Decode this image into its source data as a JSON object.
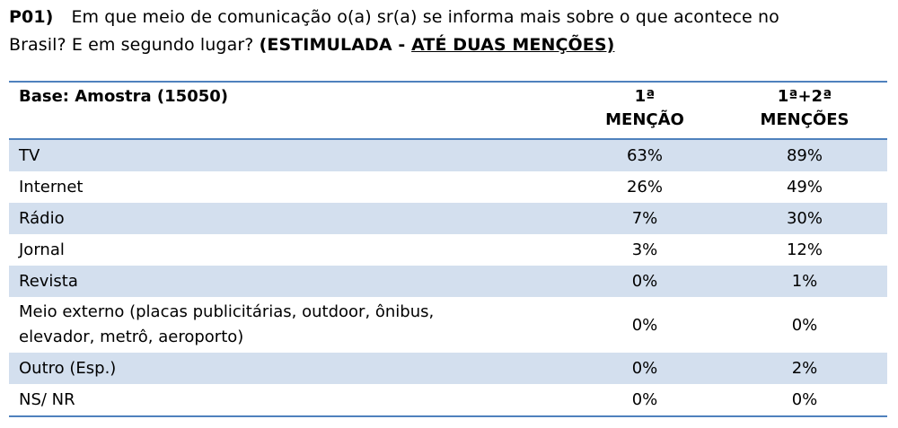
{
  "question": {
    "code": "P01)",
    "text_line1": "Em que meio de comunicação o(a) sr(a) se informa mais sobre o que acontece no",
    "text_line2": "Brasil? E em segundo lugar?",
    "instruction_prefix": "(ESTIMULADA - ",
    "instruction_underlined": "ATÉ DUAS MENÇÕES)"
  },
  "table": {
    "base_label": "Base: Amostra (15050)",
    "col1_line1": "1ª",
    "col1_line2": "MENÇÃO",
    "col2_line1": "1ª+2ª",
    "col2_line2": "MENÇÕES",
    "rows": [
      {
        "label": "TV",
        "first": "63%",
        "both": "89%"
      },
      {
        "label": "Internet",
        "first": "26%",
        "both": "49%"
      },
      {
        "label": "Rádio",
        "first": "7%",
        "both": "30%"
      },
      {
        "label": "Jornal",
        "first": "3%",
        "both": "12%"
      },
      {
        "label": "Revista",
        "first": "0%",
        "both": "1%"
      },
      {
        "label_line1": "Meio externo (placas publicitárias, outdoor, ônibus,",
        "label_line2": "elevador, metrô, aeroporto)",
        "first": "0%",
        "both": "0%"
      },
      {
        "label": "Outro (Esp.)",
        "first": "0%",
        "both": "2%"
      },
      {
        "label": "NS/ NR",
        "first": "0%",
        "both": "0%"
      }
    ]
  },
  "colors": {
    "row_shade": "#d3dfee",
    "rule": "#4f81bd"
  }
}
